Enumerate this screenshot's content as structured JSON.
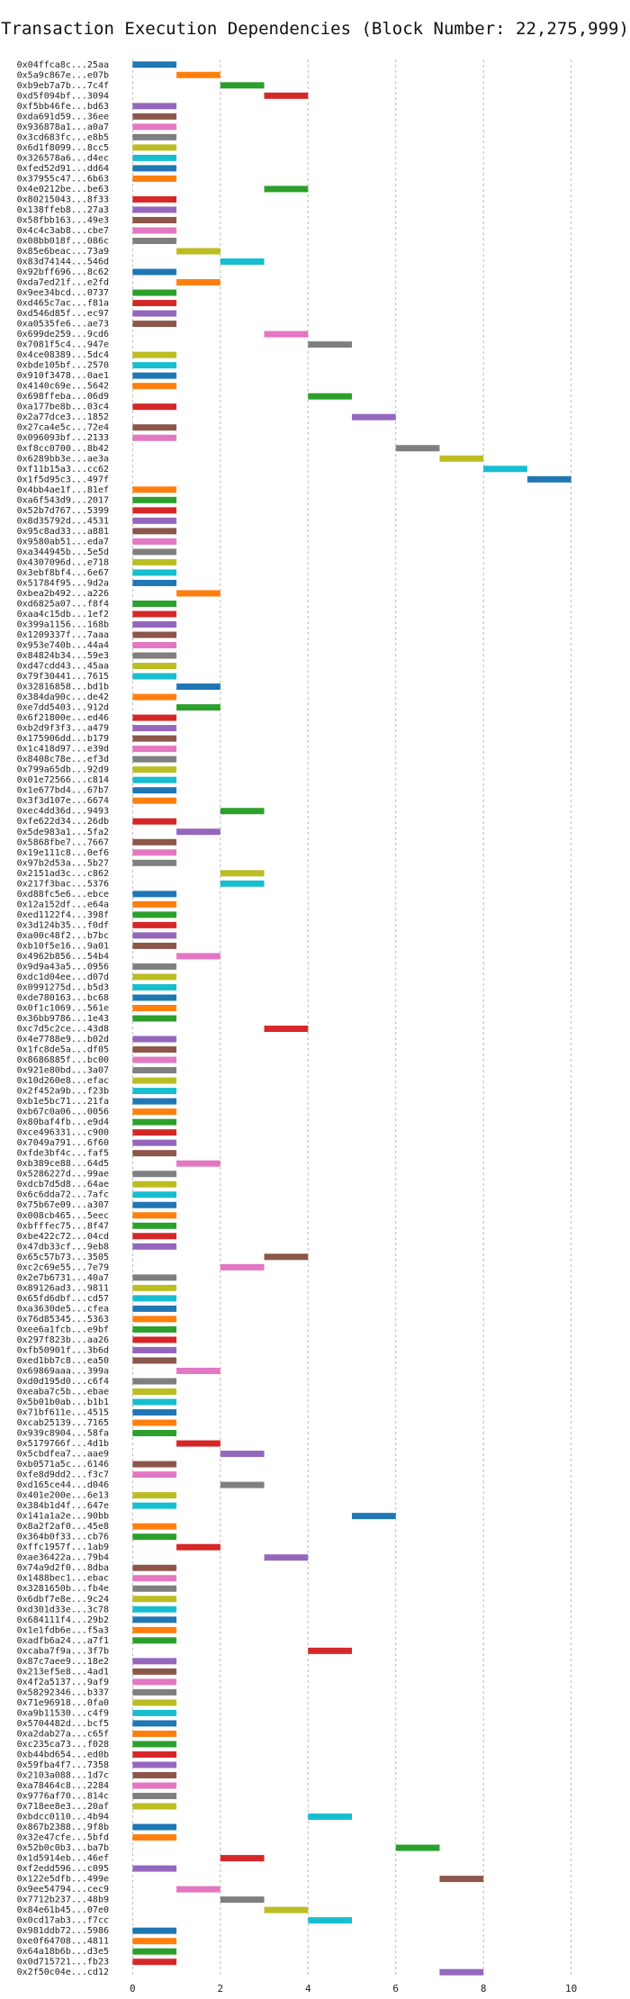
{
  "chart_data": {
    "type": "gantt",
    "title": "Transaction Execution Dependencies (Block Number: 22,275,999)",
    "colors": [
      "#1f77b4",
      "#ff7f0e",
      "#2ca02c",
      "#d62728",
      "#9467bd",
      "#8c564b",
      "#e377c2",
      "#7f7f7f",
      "#bcbd22",
      "#17becf"
    ],
    "xlim": [
      -0.5,
      10.5
    ],
    "xticks": [
      0,
      2,
      4,
      6,
      8,
      10
    ],
    "grid": true,
    "categories": [
      "0x04ffca8c...25aa",
      "0x5a9c867e...e07b",
      "0xb9eb7a7b...7c4f",
      "0xd5f094bf...3094",
      "0xf5bb46fe...bd63",
      "0xda691d59...36ee",
      "0x936878a1...a0a7",
      "0x3cd683fc...e8b5",
      "0x6d1f8099...8cc5",
      "0x326578a6...d4ec",
      "0xfed52d91...dd64",
      "0x37955c47...6b63",
      "0x4e0212be...be63",
      "0x80215043...8f33",
      "0x138ffeb8...27a3",
      "0x58fbb163...49e3",
      "0x4c4c3ab8...cbe7",
      "0x08bb018f...086c",
      "0x85e6beac...73a9",
      "0x83d74144...546d",
      "0x92bff696...8c62",
      "0xda7ed21f...e2fd",
      "0x9ee34bcd...0737",
      "0xd465c7ac...f81a",
      "0xd546d85f...ec97",
      "0xa0535fe6...ae73",
      "0x699de259...9cd6",
      "0x7081f5c4...947e",
      "0x4ce08389...5dc4",
      "0xbde105bf...2570",
      "0x910f3478...0ae1",
      "0x4140c69e...5642",
      "0x698ffeba...06d9",
      "0xa177be8b...03c4",
      "0x2a77dce3...1852",
      "0x27ca4e5c...72e4",
      "0x096093bf...2133",
      "0xf8cc0700...8b42",
      "0x6289bb3e...ae3a",
      "0xf11b15a3...cc62",
      "0x1f5d95c3...497f",
      "0x4bb4ae1f...81ef",
      "0xa6f543d9...2017",
      "0x52b7d767...5399",
      "0x8d35792d...4531",
      "0x95c8ad33...a881",
      "0x9580ab51...eda7",
      "0xa344945b...5e5d",
      "0x4307096d...e718",
      "0x3ebf8bf4...6e67",
      "0x51784f95...9d2a",
      "0xbea2b492...a226",
      "0xd6825a07...f8f4",
      "0xaa4c15db...1ef2",
      "0x399a1156...168b",
      "0x1209337f...7aaa",
      "0x953e740b...44a4",
      "0x84824b34...59e3",
      "0xd47cdd43...45aa",
      "0x79f30441...7615",
      "0x32816858...bd1b",
      "0x384da90c...de42",
      "0xe7dd5403...912d",
      "0x6f21800e...ed46",
      "0xb2d9f3f3...a479",
      "0x175906dd...b179",
      "0x1c418d97...e39d",
      "0x8408c78e...ef3d",
      "0x799a65db...92d9",
      "0x01e72566...c814",
      "0x1e677bd4...67b7",
      "0x3f3d107e...6674",
      "0xec4dd36d...9493",
      "0xfe622d34...26db",
      "0x5de983a1...5fa2",
      "0x5868fbe7...7667",
      "0x19e111c8...0ef6",
      "0x97b2d53a...5b27",
      "0x2151ad3c...c862",
      "0x217f3bac...5376",
      "0xd88fc5e6...ebce",
      "0x12a152df...e64a",
      "0xed1122f4...398f",
      "0x3d124b35...f0df",
      "0xa00c48f2...b7bc",
      "0xb10f5e16...9a01",
      "0x4962b856...54b4",
      "0x9d9a43a5...0956",
      "0xdc1d04ee...d07d",
      "0x0991275d...b5d3",
      "0xde780163...bc68",
      "0x0f1c1069...561e",
      "0x36bb9786...1e43",
      "0xc7d5c2ce...43d8",
      "0x4e7788e9...b02d",
      "0x1fc8de5a...df05",
      "0x8686885f...bc00",
      "0x921e80bd...3a07",
      "0x10d260e8...efac",
      "0x2f452a9b...f23b",
      "0xb1e5bc71...21fa",
      "0xb67c0a06...0056",
      "0x80baf4fb...e9d4",
      "0xce496331...c900",
      "0x7049a791...6f60",
      "0xfde3bf4c...faf5",
      "0xb389ce88...64d5",
      "0x5286227d...99ae",
      "0xdcb7d5d8...64ae",
      "0x6c6dda72...7afc",
      "0x75b67e09...a307",
      "0x008cb465...5eec",
      "0xbfffec75...8f47",
      "0xbe422c72...04cd",
      "0x47db33cf...9eb8",
      "0x65c57b73...3505",
      "0xc2c69e55...7e79",
      "0x2e7b6731...40a7",
      "0x89126ad3...9811",
      "0x65fd6dbf...cd57",
      "0xa3630de5...cfea",
      "0x76d85345...5363",
      "0xee6a1fcb...e9bf",
      "0x297f823b...aa26",
      "0xfb50901f...3b6d",
      "0xed1bb7c8...ea50",
      "0x69869aaa...399a",
      "0xd0d195d0...c6f4",
      "0xeaba7c5b...ebae",
      "0x5b01b0ab...b1b1",
      "0x71bf611e...4515",
      "0xcab25139...7165",
      "0x939c8904...58fa",
      "0x5179766f...4d1b",
      "0x5cbdfea7...aae9",
      "0xb0571a5c...6146",
      "0xfe8d9dd2...f3c7",
      "0xd165ce44...d046",
      "0x401e200e...6e13",
      "0x384b1d4f...647e",
      "0x141a1a2e...90bb",
      "0x8a2f2af0...45e8",
      "0x364b0f33...cb76",
      "0xffc1957f...1ab9",
      "0xae36422a...79b4",
      "0x74a9d2f0...8dba",
      "0x1488bec1...ebac",
      "0x3281650b...fb4e",
      "0x6dbf7e8e...9c24",
      "0xd301d33e...3c78",
      "0x684111f4...29b2",
      "0x1e1fdb6e...f5a3",
      "0xadfb6a24...a7f1",
      "0xcaba7f9a...3f7b",
      "0x87c7aee9...18e2",
      "0x213ef5e8...4ad1",
      "0x4f2a5137...9af9",
      "0x58292346...b337",
      "0x71e96918...0fa0",
      "0xa9b11530...c4f9",
      "0x5704482d...bcf5",
      "0xa2dab27a...c65f",
      "0xc235ca73...f028",
      "0xb44bd654...ed0b",
      "0x59fba4f7...7358",
      "0x2103a088...1d7c",
      "0xa78464c8...2284",
      "0x9776af70...814c",
      "0x718ee8e3...20af",
      "0xbdcc0110...4b94",
      "0x867b2388...9f8b",
      "0x32e47cfe...5bfd",
      "0x52b0c0b3...ba7b",
      "0x1d5914eb...46ef",
      "0xf2edd596...c095",
      "0x122e5dfb...499e",
      "0x9ee54794...cec9",
      "0x7712b237...48b9",
      "0x84e61b45...07e0",
      "0x0cd17ab3...f7cc",
      "0x981ddb72...5986",
      "0xe0f64708...4811",
      "0x64a18b6b...d3e5",
      "0x0d715721...fb23",
      "0x2f50c04e...cd12"
    ],
    "starts": [
      0,
      1,
      2,
      3,
      0,
      0,
      0,
      0,
      0,
      0,
      0,
      0,
      3,
      0,
      0,
      0,
      0,
      0,
      1,
      2,
      0,
      1,
      0,
      0,
      0,
      0,
      3,
      4,
      0,
      0,
      0,
      0,
      4,
      0,
      5,
      0,
      0,
      6,
      7,
      8,
      9,
      0,
      0,
      0,
      0,
      0,
      0,
      0,
      0,
      0,
      0,
      1,
      0,
      0,
      0,
      0,
      0,
      0,
      0,
      0,
      1,
      0,
      1,
      0,
      0,
      0,
      0,
      0,
      0,
      0,
      0,
      0,
      2,
      0,
      1,
      0,
      0,
      0,
      2,
      2,
      0,
      0,
      0,
      0,
      0,
      0,
      1,
      0,
      0,
      0,
      0,
      0,
      0,
      3,
      0,
      0,
      0,
      0,
      0,
      0,
      0,
      0,
      0,
      0,
      0,
      0,
      1,
      0,
      0,
      0,
      0,
      0,
      0,
      0,
      0,
      3,
      2,
      0,
      0,
      0,
      0,
      0,
      0,
      0,
      0,
      0,
      1,
      0,
      0,
      0,
      0,
      0,
      0,
      1,
      2,
      0,
      0,
      2,
      0,
      0,
      5,
      0,
      0,
      1,
      3,
      0,
      0,
      0,
      0,
      0,
      0,
      0,
      0,
      4,
      0,
      0,
      0,
      0,
      0,
      0,
      0,
      0,
      0,
      0,
      0,
      0,
      0,
      0,
      0,
      4,
      0,
      0,
      6,
      2,
      0,
      7,
      1,
      2,
      3,
      4,
      0,
      0,
      0,
      0,
      7
    ],
    "ends": [
      1,
      2,
      3,
      4,
      1,
      1,
      1,
      1,
      1,
      1,
      1,
      1,
      4,
      1,
      1,
      1,
      1,
      1,
      2,
      3,
      1,
      2,
      1,
      1,
      1,
      1,
      4,
      5,
      1,
      1,
      1,
      1,
      5,
      1,
      6,
      1,
      1,
      7,
      8,
      9,
      10,
      1,
      1,
      1,
      1,
      1,
      1,
      1,
      1,
      1,
      1,
      2,
      1,
      1,
      1,
      1,
      1,
      1,
      1,
      1,
      2,
      1,
      2,
      1,
      1,
      1,
      1,
      1,
      1,
      1,
      1,
      1,
      3,
      1,
      2,
      1,
      1,
      1,
      3,
      3,
      1,
      1,
      1,
      1,
      1,
      1,
      2,
      1,
      1,
      1,
      1,
      1,
      1,
      4,
      1,
      1,
      1,
      1,
      1,
      1,
      1,
      1,
      1,
      1,
      1,
      1,
      2,
      1,
      1,
      1,
      1,
      1,
      1,
      1,
      1,
      4,
      3,
      1,
      1,
      1,
      1,
      1,
      1,
      1,
      1,
      1,
      2,
      1,
      1,
      1,
      1,
      1,
      1,
      2,
      3,
      1,
      1,
      3,
      1,
      1,
      6,
      1,
      1,
      2,
      4,
      1,
      1,
      1,
      1,
      1,
      1,
      1,
      1,
      5,
      1,
      1,
      1,
      1,
      1,
      1,
      1,
      1,
      1,
      1,
      1,
      1,
      1,
      1,
      1,
      5,
      1,
      1,
      7,
      3,
      1,
      8,
      2,
      3,
      4,
      5,
      1,
      1,
      1,
      1,
      8
    ]
  }
}
